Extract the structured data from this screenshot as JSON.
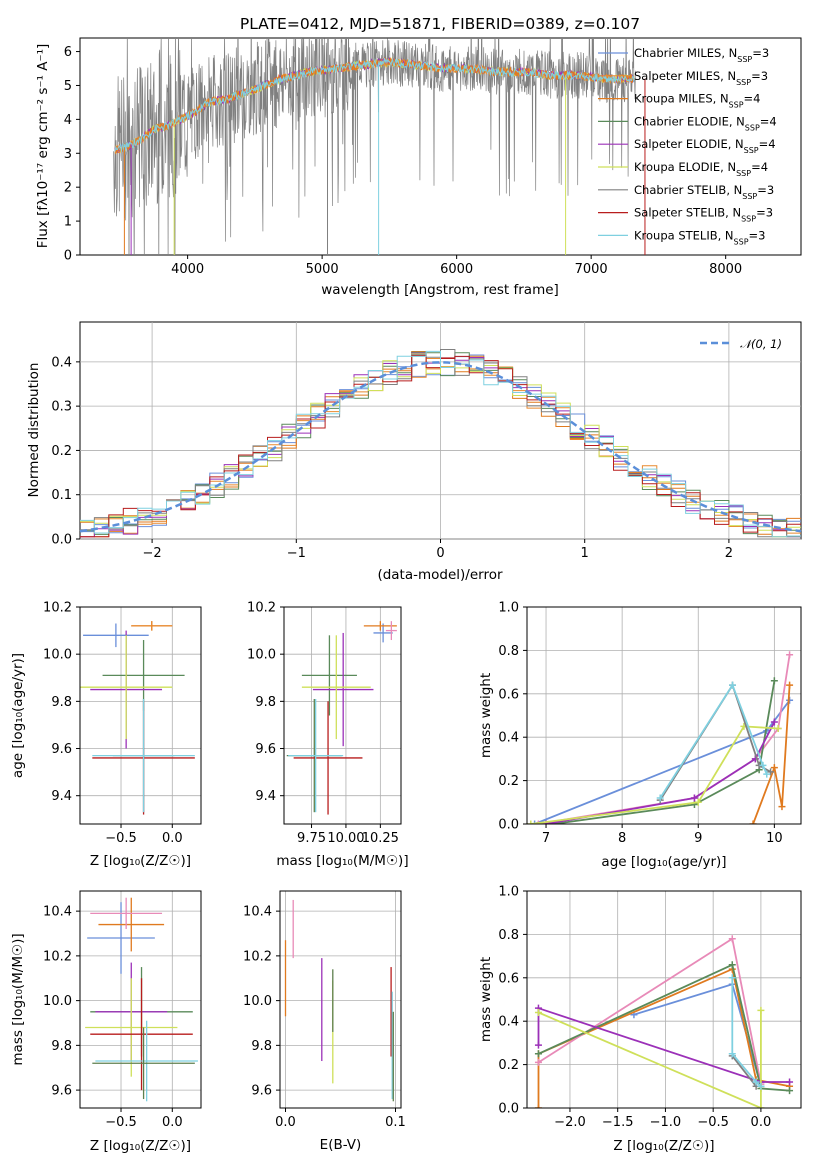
{
  "colors": {
    "cM": "#6a8fda",
    "sM": "#e8892f",
    "kM": "#e07a1f",
    "cE": "#5a8a5a",
    "sE": "#9b30b8",
    "kE": "#cfe05a",
    "cS": "#808080",
    "sS": "#b81d1d",
    "kS": "#7fd0e0",
    "pink": "#e88ab8",
    "olive": "#5e7f4e",
    "gauss": "#5b8fd9"
  },
  "chart_data": [
    {
      "id": "spectrum",
      "type": "line",
      "title": "PLATE=0412, MJD=51871, FIBERID=0389, z=0.107",
      "xlabel": "wavelength [Angstrom, rest frame]",
      "ylabel": "Flux [fλ10⁻¹⁷ erg cm⁻² s⁻¹ A⁻¹]",
      "xlim": [
        3200,
        8560
      ],
      "ylim": [
        0,
        6.4
      ],
      "xticks": [
        "4000",
        "5000",
        "6000",
        "7000",
        "8000"
      ],
      "yticks": [
        "0",
        "1",
        "2",
        "3",
        "4",
        "5",
        "6"
      ],
      "legend_placement": "top-right",
      "legend": [
        {
          "name": "Chabrier MILES, N",
          "sub": "SSP",
          "suffix": "=3",
          "color": "#6a8fda"
        },
        {
          "name": "Salpeter MILES, N",
          "sub": "SSP",
          "suffix": "=3",
          "color": "#e8892f"
        },
        {
          "name": "Kroupa MILES, N",
          "sub": "SSP",
          "suffix": "=4",
          "color": "#e07a1f"
        },
        {
          "name": "Chabrier ELODIE, N",
          "sub": "SSP",
          "suffix": "=4",
          "color": "#5a8a5a"
        },
        {
          "name": "Salpeter ELODIE, N",
          "sub": "SSP",
          "suffix": "=4",
          "color": "#9b30b8"
        },
        {
          "name": "Kroupa ELODIE, N",
          "sub": "SSP",
          "suffix": "=4",
          "color": "#cfe05a"
        },
        {
          "name": "Chabrier STELIB, N",
          "sub": "SSP",
          "suffix": "=3",
          "color": "#808080"
        },
        {
          "name": "Salpeter STELIB, N",
          "sub": "SSP",
          "suffix": "=3",
          "color": "#b81d1d"
        },
        {
          "name": "Kroupa STELIB, N",
          "sub": "SSP",
          "suffix": "=3",
          "color": "#7fd0e0"
        }
      ],
      "model_continuum": [
        [
          3450,
          3.1
        ],
        [
          3550,
          3.2
        ],
        [
          3650,
          3.4
        ],
        [
          3750,
          3.7
        ],
        [
          3850,
          3.8
        ],
        [
          3950,
          4.0
        ],
        [
          4050,
          4.2
        ],
        [
          4150,
          4.5
        ],
        [
          4300,
          4.6
        ],
        [
          4500,
          4.9
        ],
        [
          4700,
          5.2
        ],
        [
          4900,
          5.4
        ],
        [
          5100,
          5.5
        ],
        [
          5300,
          5.6
        ],
        [
          5500,
          5.7
        ],
        [
          5700,
          5.6
        ],
        [
          5900,
          5.5
        ],
        [
          6100,
          5.5
        ],
        [
          6300,
          5.4
        ],
        [
          6500,
          5.4
        ],
        [
          6700,
          5.3
        ],
        [
          6900,
          5.3
        ],
        [
          7100,
          5.2
        ],
        [
          7300,
          5.2
        ]
      ]
    },
    {
      "id": "residuals",
      "type": "line",
      "xlabel": "(data-model)/error",
      "ylabel": "Normed distribution",
      "xlim": [
        -2.5,
        2.5
      ],
      "ylim": [
        0,
        0.49
      ],
      "xticks": [
        "−2",
        "−1",
        "0",
        "1",
        "2"
      ],
      "yticks": [
        "0.0",
        "0.1",
        "0.2",
        "0.3",
        "0.4"
      ],
      "legend": [
        {
          "name": "𝒩(0, 1)",
          "color": "#5b8fd9"
        }
      ],
      "legend_placement": "top-right",
      "bin_width": 0.1
    },
    {
      "id": "age-vs-Z",
      "type": "scatter",
      "xlabel": "Z [log₁₀(Z/Z☉)]",
      "ylabel": "age  [log₁₀(age/yr)]",
      "xlim": [
        -0.9,
        0.28
      ],
      "ylim": [
        9.28,
        10.2
      ],
      "xticks": [
        "−0.5",
        "0.0"
      ],
      "yticks": [
        "9.4",
        "9.6",
        "9.8",
        "10.0",
        "10.2"
      ],
      "points": [
        {
          "x": -0.55,
          "y": 10.08,
          "xerr": 0.32,
          "yerr": 0.05,
          "color": "#6a8fda"
        },
        {
          "x": -0.2,
          "y": 10.12,
          "xerr": 0.2,
          "yerr": 0.02,
          "color": "#e07a1f"
        },
        {
          "x": -0.2,
          "y": 10.12,
          "xerr": 0.2,
          "yerr": 0.02,
          "color": "#e8892f"
        },
        {
          "x": -0.28,
          "y": 9.91,
          "xerr": 0.4,
          "yerr": 0.15,
          "color": "#5a8a5a"
        },
        {
          "x": -0.45,
          "y": 9.85,
          "xerr": 0.35,
          "yerr": 0.25,
          "color": "#9b30b8"
        },
        {
          "x": -0.45,
          "y": 9.86,
          "xerr": 0.45,
          "yerr": 0.22,
          "color": "#cfe05a"
        },
        {
          "x": -0.28,
          "y": 9.57,
          "xerr": 0.3,
          "yerr": 0.24,
          "color": "#808080"
        },
        {
          "x": -0.28,
          "y": 9.56,
          "xerr": 0.5,
          "yerr": 0.24,
          "color": "#b81d1d"
        },
        {
          "x": -0.28,
          "y": 9.57,
          "xerr": 0.5,
          "yerr": 0.24,
          "color": "#7fd0e0"
        }
      ]
    },
    {
      "id": "age-vs-mass",
      "type": "scatter",
      "xlabel": "mass [log₁₀(M/M☉)]",
      "xlim": [
        9.55,
        10.4
      ],
      "ylim": [
        9.28,
        10.2
      ],
      "xticks": [
        "9.75",
        "10.00",
        "10.25"
      ],
      "yticks": [
        "9.4",
        "9.6",
        "9.8",
        "10.0",
        "10.2"
      ],
      "points": [
        {
          "x": 10.27,
          "y": 10.09,
          "xerr": 0.07,
          "yerr": 0.04,
          "color": "#6a8fda"
        },
        {
          "x": 10.25,
          "y": 10.12,
          "xerr": 0.12,
          "yerr": 0.02,
          "color": "#e07a1f"
        },
        {
          "x": 10.33,
          "y": 10.1,
          "xerr": 0.04,
          "yerr": 0.04,
          "color": "#e88ab8"
        },
        {
          "x": 9.88,
          "y": 9.91,
          "xerr": 0.2,
          "yerr": 0.17,
          "color": "#5a8a5a"
        },
        {
          "x": 9.98,
          "y": 9.85,
          "xerr": 0.22,
          "yerr": 0.24,
          "color": "#9b30b8"
        },
        {
          "x": 9.93,
          "y": 9.86,
          "xerr": 0.25,
          "yerr": 0.22,
          "color": "#cfe05a"
        },
        {
          "x": 9.77,
          "y": 9.57,
          "xerr": 0.2,
          "yerr": 0.24,
          "color": "#5e7f4e"
        },
        {
          "x": 9.87,
          "y": 9.56,
          "xerr": 0.25,
          "yerr": 0.24,
          "color": "#b81d1d"
        },
        {
          "x": 9.78,
          "y": 9.57,
          "xerr": 0.2,
          "yerr": 0.24,
          "color": "#7fd0e0"
        }
      ]
    },
    {
      "id": "weight-vs-age",
      "type": "line",
      "xlabel": "age  [log₁₀(age/yr)]",
      "ylabel": "mass weight",
      "xlim": [
        6.75,
        10.35
      ],
      "ylim": [
        0,
        1
      ],
      "xticks": [
        "7",
        "8",
        "9",
        "10"
      ],
      "yticks": [
        "0.0",
        "0.2",
        "0.4",
        "0.6",
        "0.8",
        "1.0"
      ],
      "series": [
        {
          "color": "#6a8fda",
          "points": [
            [
              6.85,
              0
            ],
            [
              9.9,
              0.43
            ],
            [
              10.2,
              0.57
            ]
          ]
        },
        {
          "color": "#e07a1f",
          "points": [
            [
              9.72,
              0
            ],
            [
              10.0,
              0.26
            ],
            [
              10.1,
              0.08
            ],
            [
              10.2,
              0.64
            ]
          ]
        },
        {
          "color": "#e88ab8",
          "points": [
            [
              6.9,
              0
            ],
            [
              8.95,
              0.12
            ],
            [
              9.75,
              0.3
            ],
            [
              10.05,
              0.44
            ],
            [
              10.2,
              0.78
            ]
          ]
        },
        {
          "color": "#5a8a5a",
          "points": [
            [
              7.1,
              0
            ],
            [
              8.95,
              0.09
            ],
            [
              9.8,
              0.25
            ],
            [
              10.0,
              0.66
            ]
          ]
        },
        {
          "color": "#9b30b8",
          "points": [
            [
              7.0,
              0
            ],
            [
              8.95,
              0.12
            ],
            [
              9.75,
              0.3
            ],
            [
              10.0,
              0.47
            ]
          ]
        },
        {
          "color": "#cfe05a",
          "points": [
            [
              6.8,
              0
            ],
            [
              9.0,
              0.1
            ],
            [
              9.6,
              0.45
            ],
            [
              10.05,
              0.44
            ]
          ]
        },
        {
          "color": "#808080",
          "points": [
            [
              8.5,
              0.11
            ],
            [
              9.45,
              0.64
            ],
            [
              9.8,
              0.27
            ],
            [
              9.95,
              0.24
            ]
          ]
        },
        {
          "color": "#7fd0e0",
          "points": [
            [
              8.5,
              0.12
            ],
            [
              9.45,
              0.64
            ],
            [
              9.85,
              0.27
            ],
            [
              9.9,
              0.23
            ]
          ]
        }
      ]
    },
    {
      "id": "mass-vs-Z",
      "type": "scatter",
      "xlabel": "Z [log₁₀(Z/Z☉)]",
      "ylabel": "mass [log₁₀(M/M☉)]",
      "xlim": [
        -0.9,
        0.28
      ],
      "ylim": [
        9.52,
        10.49
      ],
      "xticks": [
        "−0.5",
        "0.0"
      ],
      "yticks": [
        "9.6",
        "9.8",
        "10.0",
        "10.2",
        "10.4"
      ],
      "points": [
        {
          "x": -0.5,
          "y": 10.28,
          "xerr": 0.33,
          "yerr": 0.16,
          "color": "#6a8fda"
        },
        {
          "x": -0.4,
          "y": 10.34,
          "xerr": 0.32,
          "yerr": 0.12,
          "color": "#e07a1f"
        },
        {
          "x": -0.45,
          "y": 10.39,
          "xerr": 0.35,
          "yerr": 0.07,
          "color": "#e88ab8"
        },
        {
          "x": -0.3,
          "y": 9.95,
          "xerr": 0.5,
          "yerr": 0.2,
          "color": "#5a8a5a"
        },
        {
          "x": -0.4,
          "y": 9.95,
          "xerr": 0.35,
          "yerr": 0.22,
          "color": "#9b30b8"
        },
        {
          "x": -0.4,
          "y": 9.88,
          "xerr": 0.45,
          "yerr": 0.22,
          "color": "#cfe05a"
        },
        {
          "x": -0.3,
          "y": 9.85,
          "xerr": 0.5,
          "yerr": 0.25,
          "color": "#b81d1d"
        },
        {
          "x": -0.25,
          "y": 9.73,
          "xerr": 0.5,
          "yerr": 0.18,
          "color": "#7fd0e0"
        },
        {
          "x": -0.28,
          "y": 9.72,
          "xerr": 0.5,
          "yerr": 0.16,
          "color": "#5e7f4e"
        }
      ]
    },
    {
      "id": "mass-vs-EBV",
      "type": "scatter",
      "xlabel": "E(B-V)",
      "xlim": [
        -0.005,
        0.105
      ],
      "ylim": [
        9.52,
        10.49
      ],
      "xticks": [
        "0.0",
        "0.1"
      ],
      "yticks": [
        "9.6",
        "9.8",
        "10.0",
        "10.2",
        "10.4"
      ],
      "points": [
        {
          "x": 0.0,
          "y": 10.1,
          "yerr": 0.17,
          "color": "#e07a1f"
        },
        {
          "x": 0.007,
          "y": 10.32,
          "yerr": 0.13,
          "color": "#e88ab8"
        },
        {
          "x": 0.033,
          "y": 9.96,
          "yerr": 0.23,
          "color": "#9b30b8"
        },
        {
          "x": 0.043,
          "y": 9.86,
          "yerr": 0.23,
          "color": "#cfe05a"
        },
        {
          "x": 0.043,
          "y": 10.0,
          "yerr": 0.14,
          "color": "#5e7f4e"
        },
        {
          "x": 0.096,
          "y": 9.95,
          "yerr": 0.2,
          "color": "#b81d1d"
        },
        {
          "x": 0.097,
          "y": 9.8,
          "yerr": 0.24,
          "color": "#7fd0e0"
        },
        {
          "x": 0.098,
          "y": 9.75,
          "yerr": 0.2,
          "color": "#5e7f4e"
        }
      ]
    },
    {
      "id": "weight-vs-Z",
      "type": "line",
      "xlabel": "Z [log₁₀(Z/Z☉)]",
      "ylabel": "mass weight",
      "xlim": [
        -2.45,
        0.42
      ],
      "ylim": [
        0,
        1
      ],
      "xticks": [
        "−2.0",
        "−1.5",
        "−1.0",
        "−0.5",
        "0.0"
      ],
      "yticks": [
        "0.0",
        "0.2",
        "0.4",
        "0.6",
        "0.8",
        "1.0"
      ],
      "series": [
        {
          "color": "#6a8fda",
          "points": [
            [
              -1.33,
              0.43
            ],
            [
              -0.3,
              0.57
            ],
            [
              0.0,
              0.1
            ]
          ]
        },
        {
          "color": "#e07a1f",
          "points": [
            [
              -2.33,
              0.0
            ],
            [
              -2.33,
              0.25
            ],
            [
              -0.3,
              0.64
            ],
            [
              -0.05,
              0.13
            ],
            [
              0.3,
              0.1
            ]
          ]
        },
        {
          "color": "#e88ab8",
          "points": [
            [
              -2.33,
              0.21
            ],
            [
              -0.3,
              0.78
            ],
            [
              0.0,
              0.11
            ]
          ]
        },
        {
          "color": "#5a8a5a",
          "points": [
            [
              -2.33,
              0.25
            ],
            [
              -0.3,
              0.66
            ],
            [
              0.0,
              0.09
            ],
            [
              0.3,
              0.08
            ]
          ]
        },
        {
          "color": "#9b30b8",
          "points": [
            [
              -2.33,
              0.29
            ],
            [
              -2.33,
              0.46
            ],
            [
              0.0,
              0.12
            ],
            [
              0.3,
              0.12
            ]
          ]
        },
        {
          "color": "#cfe05a",
          "points": [
            [
              -2.33,
              0.44
            ],
            [
              0.0,
              0.0
            ],
            [
              0.0,
              0.45
            ]
          ]
        },
        {
          "color": "#808080",
          "points": [
            [
              -0.3,
              0.24
            ],
            [
              -0.05,
              0.1
            ]
          ]
        },
        {
          "color": "#7fd0e0",
          "points": [
            [
              -0.3,
              0.6
            ],
            [
              -0.3,
              0.25
            ],
            [
              -0.05,
              0.12
            ],
            [
              0.0,
              0.1
            ]
          ]
        }
      ]
    }
  ]
}
